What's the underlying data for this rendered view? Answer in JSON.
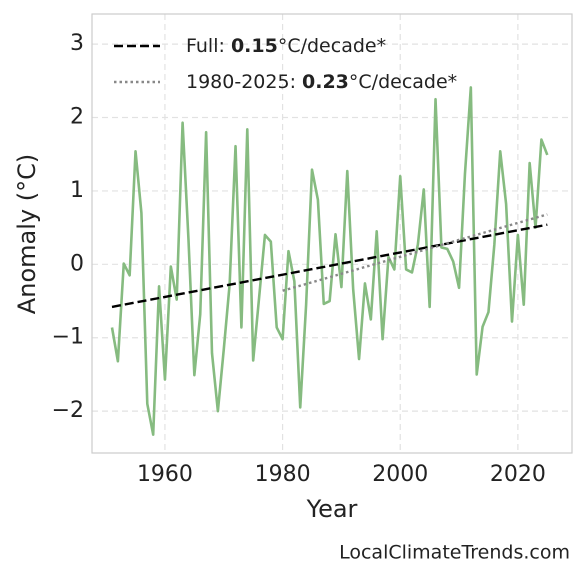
{
  "chart_data": {
    "type": "line",
    "xlabel": "Year",
    "ylabel": "Anomaly (°C)",
    "source": "LocalClimateTrends.com",
    "xlim": [
      1947.6,
      2029.2
    ],
    "xticks": [
      1960,
      1980,
      2000,
      2020
    ],
    "ylim": [
      -2.57,
      3.41
    ],
    "yticks": [
      {
        "value": -2,
        "label": "−2"
      },
      {
        "value": -1,
        "label": "−1"
      },
      0,
      1,
      2,
      3
    ],
    "grid": true,
    "legend": "upper left",
    "series": [
      {
        "color": "#86bb80",
        "style": "solid",
        "x": [
          1951,
          1952,
          1953,
          1954,
          1955,
          1956,
          1957,
          1958,
          1959,
          1960,
          1961,
          1962,
          1963,
          1964,
          1965,
          1966,
          1967,
          1968,
          1969,
          1970,
          1971,
          1972,
          1973,
          1974,
          1975,
          1976,
          1977,
          1978,
          1979,
          1980,
          1981,
          1982,
          1983,
          1984,
          1985,
          1986,
          1987,
          1988,
          1989,
          1990,
          1991,
          1992,
          1993,
          1994,
          1995,
          1996,
          1997,
          1998,
          1999,
          2000,
          2001,
          2002,
          2003,
          2004,
          2005,
          2006,
          2007,
          2008,
          2009,
          2010,
          2011,
          2012,
          2013,
          2014,
          2015,
          2016,
          2017,
          2018,
          2019,
          2020,
          2021,
          2022,
          2023,
          2024,
          2025
        ],
        "values": [
          -0.86,
          -1.32,
          0.01,
          -0.15,
          1.54,
          0.7,
          -1.9,
          -2.32,
          -0.3,
          -1.57,
          -0.03,
          -0.48,
          1.93,
          0.34,
          -1.51,
          -0.68,
          1.8,
          -1.21,
          -2.0,
          -1.16,
          -0.27,
          1.61,
          -0.86,
          1.84,
          -1.31,
          -0.46,
          0.4,
          0.31,
          -0.86,
          -1.02,
          0.18,
          -0.23,
          -1.95,
          -0.55,
          1.29,
          0.88,
          -0.54,
          -0.5,
          0.41,
          -0.31,
          1.27,
          -0.34,
          -1.29,
          -0.26,
          -0.75,
          0.45,
          -1.02,
          0.1,
          -0.07,
          1.2,
          -0.07,
          -0.11,
          0.27,
          1.02,
          -0.58,
          2.25,
          0.23,
          0.21,
          0.04,
          -0.32,
          1.23,
          2.41,
          -1.5,
          -0.85,
          -0.65,
          0.27,
          1.54,
          0.82,
          -0.78,
          0.4,
          -0.55,
          1.38,
          0.5,
          1.7,
          1.49
        ]
      },
      {
        "name_parts": [
          "Full: ",
          "0.15",
          "°C/decade*"
        ],
        "color": "#000000",
        "style": "dashed",
        "x": [
          1951,
          2025
        ],
        "values": [
          -0.58,
          0.54
        ]
      },
      {
        "name_parts": [
          "1980-2025: ",
          "0.23",
          "°C/decade*"
        ],
        "color": "#888888",
        "style": "dotted",
        "x": [
          1980,
          2025
        ],
        "values": [
          -0.36,
          0.68
        ]
      }
    ]
  }
}
